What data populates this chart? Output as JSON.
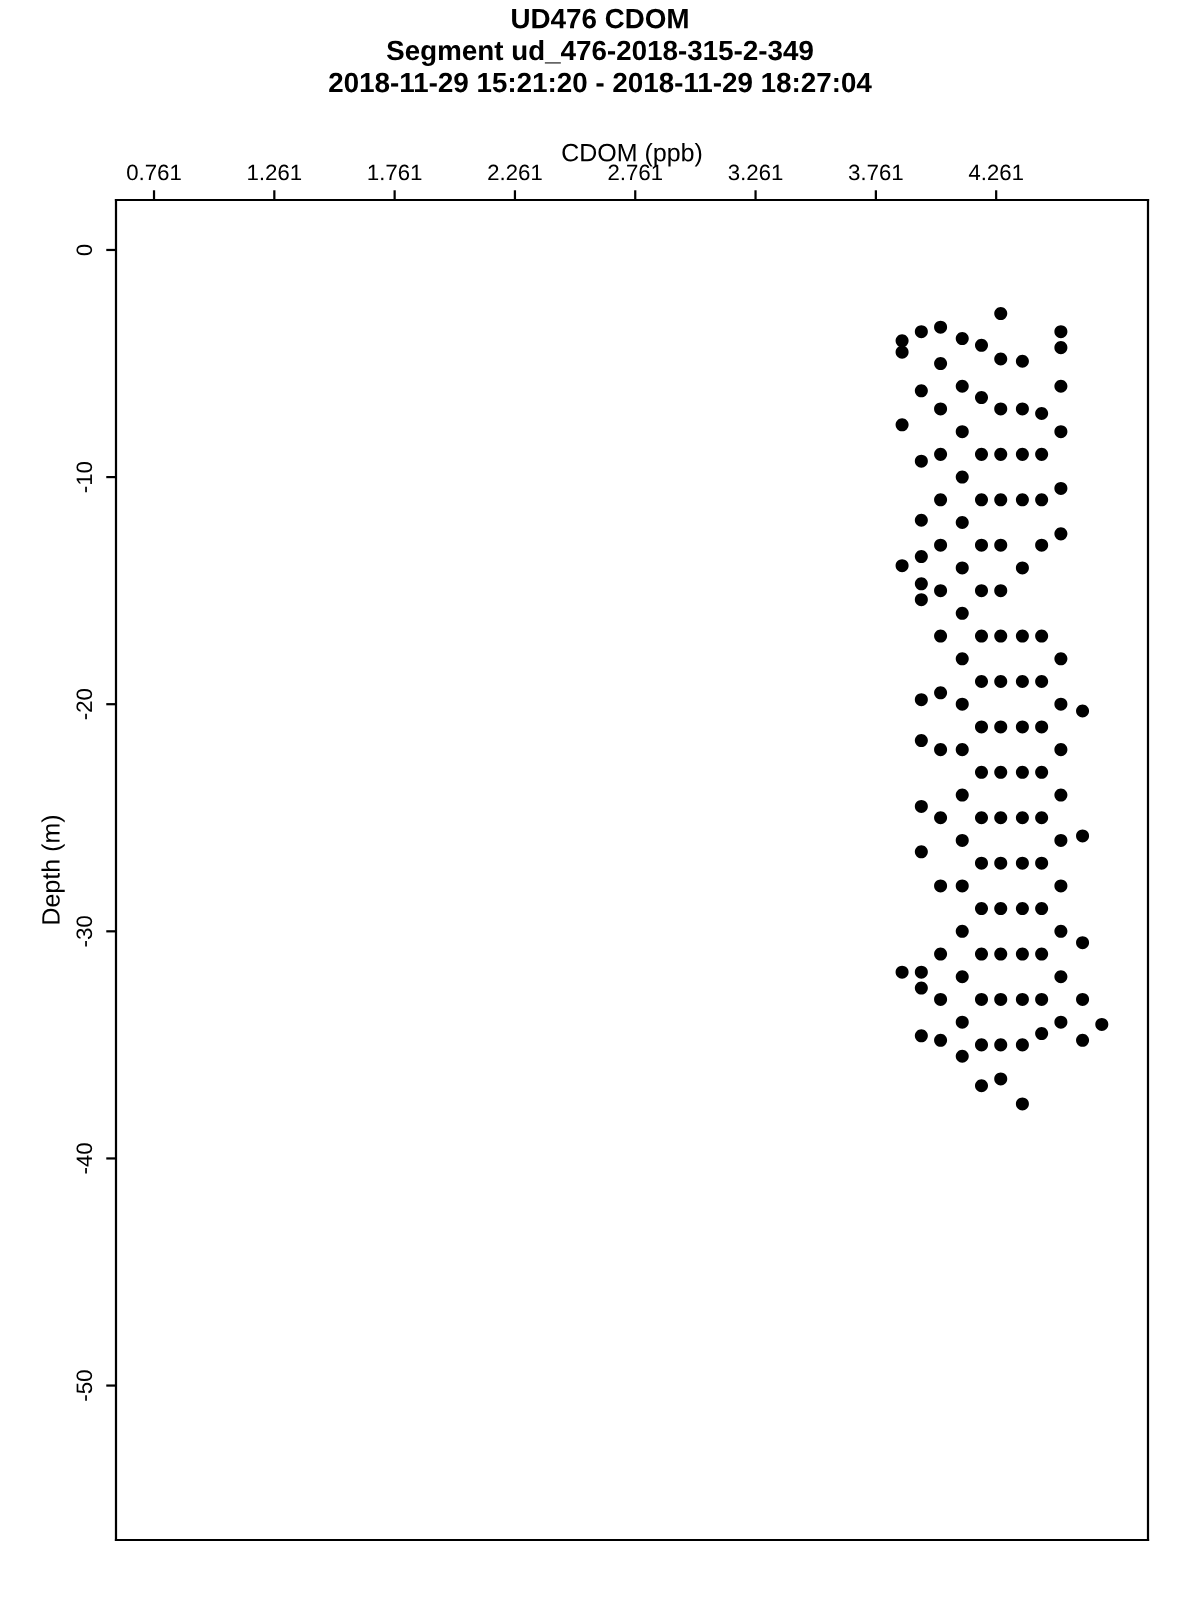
{
  "chart_data": {
    "type": "scatter",
    "title": "UD476 CDOM\nSegment ud_476-2018-315-2-349\n2018-11-29 15:21:20 - 2018-11-29 18:27:04",
    "xlabel": "CDOM (ppb)",
    "ylabel": "Depth (m)",
    "xlim": [
      0.603,
      4.892
    ],
    "ylim": [
      -56.8,
      2.2
    ],
    "xticks": [
      0.761,
      1.261,
      1.761,
      2.261,
      2.761,
      3.261,
      3.761,
      4.261
    ],
    "yticks": [
      0,
      -10,
      -20,
      -30,
      -40,
      -50
    ],
    "grid": false,
    "legend": false,
    "marker": "circle",
    "series": [
      {
        "color": "#000000",
        "x": [
          3.87,
          3.87,
          3.87,
          3.87,
          3.87,
          3.95,
          3.95,
          3.95,
          3.95,
          3.95,
          3.95,
          3.95,
          3.95,
          3.95,
          3.95,
          3.95,
          3.95,
          3.95,
          3.95,
          4.03,
          4.03,
          4.03,
          4.03,
          4.03,
          4.03,
          4.03,
          4.03,
          4.03,
          4.03,
          4.03,
          4.03,
          4.03,
          4.03,
          4.03,
          4.12,
          4.12,
          4.12,
          4.12,
          4.12,
          4.12,
          4.12,
          4.12,
          4.12,
          4.12,
          4.12,
          4.12,
          4.12,
          4.12,
          4.12,
          4.12,
          4.12,
          4.2,
          4.2,
          4.2,
          4.2,
          4.2,
          4.2,
          4.2,
          4.2,
          4.2,
          4.2,
          4.2,
          4.2,
          4.2,
          4.2,
          4.2,
          4.2,
          4.2,
          4.28,
          4.28,
          4.28,
          4.28,
          4.28,
          4.28,
          4.28,
          4.28,
          4.28,
          4.28,
          4.28,
          4.28,
          4.28,
          4.28,
          4.28,
          4.28,
          4.28,
          4.28,
          4.37,
          4.37,
          4.37,
          4.37,
          4.37,
          4.37,
          4.37,
          4.37,
          4.37,
          4.37,
          4.37,
          4.37,
          4.37,
          4.37,
          4.37,
          4.37,
          4.45,
          4.45,
          4.45,
          4.45,
          4.45,
          4.45,
          4.45,
          4.45,
          4.45,
          4.45,
          4.45,
          4.45,
          4.45,
          4.45,
          4.53,
          4.53,
          4.53,
          4.53,
          4.53,
          4.53,
          4.53,
          4.53,
          4.53,
          4.53,
          4.53,
          4.53,
          4.53,
          4.53,
          4.53,
          4.62,
          4.62,
          4.62,
          4.62,
          4.62,
          4.7
        ],
        "values": [
          -4.0,
          -4.5,
          -7.7,
          -13.9,
          -31.8,
          -3.6,
          -6.2,
          -9.3,
          -11.9,
          -13.5,
          -14.7,
          -15.4,
          -19.8,
          -21.6,
          -24.5,
          -26.5,
          -31.8,
          -32.5,
          -34.6,
          -3.4,
          -5,
          -7,
          -9,
          -11,
          -13,
          -15,
          -17,
          -19.5,
          -22,
          -25,
          -28,
          -31,
          -33,
          -34.8,
          -3.9,
          -6,
          -8,
          -10,
          -12,
          -14,
          -16,
          -18,
          -20,
          -22,
          -24,
          -26,
          -28,
          -30,
          -32,
          -34,
          -35.5,
          -4.2,
          -6.5,
          -9,
          -11,
          -13,
          -15,
          -17,
          -19,
          -21,
          -23,
          -25,
          -27,
          -29,
          -31,
          -33,
          -35,
          -36.8,
          -2.8,
          -4.8,
          -7,
          -9,
          -11,
          -13,
          -15,
          -17,
          -19,
          -21,
          -23,
          -25,
          -27,
          -29,
          -31,
          -33,
          -35,
          -36.5,
          -4.9,
          -7,
          -9,
          -11,
          -14,
          -17,
          -19,
          -21,
          -23,
          -25,
          -27,
          -29,
          -31,
          -33,
          -35,
          -37.6,
          -7.2,
          -9,
          -11,
          -13,
          -17,
          -19,
          -21,
          -23,
          -25,
          -27,
          -29,
          -31,
          -33,
          -34.5,
          -3.6,
          -4.3,
          -6,
          -8,
          -10.5,
          -12.5,
          -18,
          -20,
          -22,
          -24,
          -26,
          -28,
          -30,
          -32,
          -34,
          -20.3,
          -25.8,
          -30.5,
          -33,
          -34.8,
          -34.1
        ]
      }
    ]
  }
}
